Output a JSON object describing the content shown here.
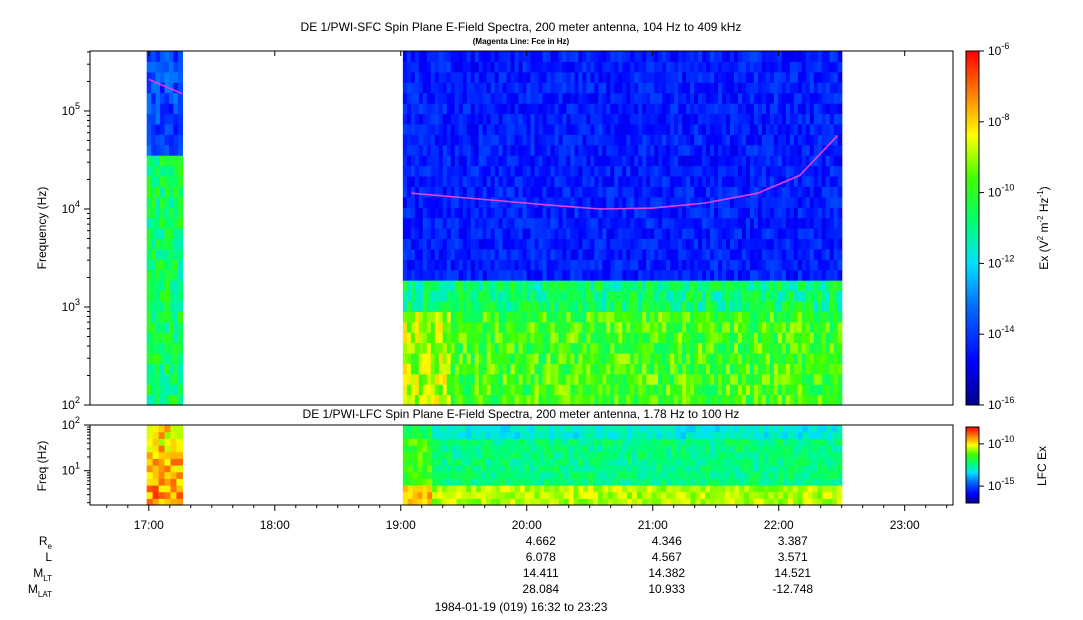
{
  "chart_data": [
    {
      "type": "heatmap",
      "title": "DE 1/PWI-SFC  Spin Plane E-Field Spectra, 200 meter antenna, 104 Hz to 409 kHz",
      "subtitle": "(Magenta Line: Fce in Hz)",
      "ylabel": "Frequency (Hz)",
      "yscale": "log",
      "ylim": [
        100,
        409000
      ],
      "yticks": [
        "10^2",
        "10^3",
        "10^4",
        "10^5"
      ],
      "colorbar": {
        "label": "Ex (V^2 m^-2 Hz^-1)",
        "scale": "log",
        "range": [
          1e-16,
          1e-06
        ],
        "ticks": [
          "10^-6",
          "10^-8",
          "10^-10",
          "10^-12",
          "10^-14",
          "10^-16"
        ]
      },
      "data_intervals": [
        [
          "16:59",
          "17:16"
        ],
        [
          "19:01",
          "22:30"
        ]
      ],
      "fce_line": {
        "color": "#e040e0",
        "points": [
          {
            "t": "17:00",
            "f": 210000
          },
          {
            "t": "17:16",
            "f": 150000
          },
          {
            "t": "19:05",
            "f": 14500
          },
          {
            "t": "19:40",
            "f": 12500
          },
          {
            "t": "20:10",
            "f": 11000
          },
          {
            "t": "20:35",
            "f": 10000
          },
          {
            "t": "21:00",
            "f": 10200
          },
          {
            "t": "21:25",
            "f": 11500
          },
          {
            "t": "21:50",
            "f": 14500
          },
          {
            "t": "22:10",
            "f": 22000
          },
          {
            "t": "22:28",
            "f": 56000
          }
        ]
      }
    },
    {
      "type": "heatmap",
      "title": "DE 1/PWI-LFC  Spin Plane E-Field Spectra, 200 meter antenna, 1.78 Hz to 100 Hz",
      "ylabel": "Freq (Hz)",
      "yscale": "log",
      "ylim": [
        1.78,
        100
      ],
      "yticks": [
        "10^1",
        "10^2"
      ],
      "colorbar": {
        "label": "LFC Ex",
        "scale": "log",
        "range": [
          1e-17,
          1e-08
        ],
        "ticks": [
          "10^-10",
          "10^-15"
        ]
      },
      "data_intervals": [
        [
          "16:59",
          "17:16"
        ],
        [
          "19:01",
          "22:30"
        ]
      ]
    }
  ],
  "xaxis": {
    "ticks": [
      "17:00",
      "18:00",
      "19:00",
      "20:00",
      "21:00",
      "22:00",
      "23:00"
    ],
    "range": [
      "16:32",
      "23:23"
    ]
  },
  "ephemeris": {
    "labels": [
      {
        "main": "R",
        "sub": "e"
      },
      {
        "main": "L",
        "sub": ""
      },
      {
        "main": "M",
        "sub": "LT"
      },
      {
        "main": "M",
        "sub": "LAT"
      }
    ],
    "columns": [
      {
        "time": "20:00",
        "values": [
          "4.662",
          "6.078",
          "14.411",
          "28.084"
        ]
      },
      {
        "time": "21:00",
        "values": [
          "4.346",
          "4.567",
          "14.382",
          "10.933"
        ]
      },
      {
        "time": "22:00",
        "values": [
          "3.387",
          "3.571",
          "14.521",
          "-12.748"
        ]
      }
    ]
  },
  "footer": "1984-01-19 (019) 16:32 to 23:23"
}
